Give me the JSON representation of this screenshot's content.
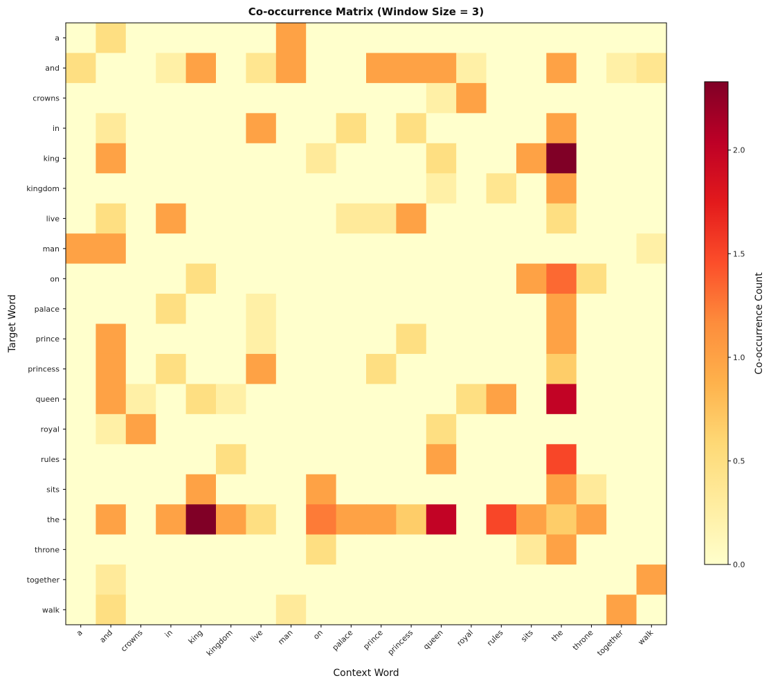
{
  "chart_data": {
    "type": "heatmap",
    "title": "Co-occurrence Matrix (Window Size = 3)",
    "xlabel": "Context Word",
    "ylabel": "Target Word",
    "colorbar_label": "Co-occurrence Count",
    "colormap": "YlOrRd",
    "vmin": 0,
    "vmax": 2.33,
    "colorbar_ticks": [
      "0.0",
      "0.5",
      "1.0",
      "1.5",
      "2.0"
    ],
    "x_labels": [
      "a",
      "and",
      "crowns",
      "in",
      "king",
      "kingdom",
      "live",
      "man",
      "on",
      "palace",
      "prince",
      "princess",
      "queen",
      "royal",
      "rules",
      "sits",
      "the",
      "throne",
      "together",
      "walk"
    ],
    "y_labels": [
      "a",
      "and",
      "crowns",
      "in",
      "king",
      "kingdom",
      "live",
      "man",
      "on",
      "palace",
      "prince",
      "princess",
      "queen",
      "royal",
      "rules",
      "sits",
      "the",
      "throne",
      "together",
      "walk"
    ],
    "values": [
      [
        0,
        0.5,
        0,
        0,
        0,
        0,
        0,
        1,
        0,
        0,
        0,
        0,
        0,
        0,
        0,
        0,
        0,
        0,
        0,
        0
      ],
      [
        0.5,
        0,
        0,
        0.25,
        1,
        0,
        0.4,
        1,
        0,
        0,
        1,
        1,
        1,
        0.25,
        0,
        0,
        1,
        0,
        0.25,
        0.4
      ],
      [
        0,
        0,
        0,
        0,
        0,
        0,
        0,
        0,
        0,
        0,
        0,
        0,
        0.25,
        1,
        0,
        0,
        0,
        0,
        0,
        0
      ],
      [
        0,
        0.33,
        0,
        0,
        0,
        0,
        1,
        0,
        0,
        0.5,
        0,
        0.5,
        0,
        0,
        0,
        0,
        1,
        0,
        0,
        0
      ],
      [
        0,
        1,
        0,
        0,
        0,
        0,
        0,
        0,
        0.33,
        0,
        0,
        0,
        0.5,
        0,
        0,
        1,
        2.33,
        0,
        0,
        0
      ],
      [
        0,
        0,
        0,
        0,
        0,
        0,
        0,
        0,
        0,
        0,
        0,
        0,
        0.25,
        0,
        0.4,
        0,
        1,
        0,
        0,
        0
      ],
      [
        0,
        0.5,
        0,
        1,
        0,
        0,
        0,
        0,
        0,
        0.33,
        0.33,
        1,
        0,
        0,
        0,
        0,
        0.5,
        0,
        0,
        0
      ],
      [
        1,
        1,
        0,
        0,
        0,
        0,
        0,
        0,
        0,
        0,
        0,
        0,
        0,
        0,
        0,
        0,
        0,
        0,
        0,
        0.25
      ],
      [
        0,
        0,
        0,
        0,
        0.5,
        0,
        0,
        0,
        0,
        0,
        0,
        0,
        0,
        0,
        0,
        1,
        1.33,
        0.5,
        0,
        0
      ],
      [
        0,
        0,
        0,
        0.5,
        0,
        0,
        0.25,
        0,
        0,
        0,
        0,
        0,
        0,
        0,
        0,
        0,
        1,
        0,
        0,
        0
      ],
      [
        0,
        1,
        0,
        0,
        0,
        0,
        0.25,
        0,
        0,
        0,
        0,
        0.5,
        0,
        0,
        0,
        0,
        1,
        0,
        0,
        0
      ],
      [
        0,
        1,
        0,
        0.5,
        0,
        0,
        1,
        0,
        0,
        0,
        0.5,
        0,
        0,
        0,
        0,
        0,
        0.67,
        0,
        0,
        0
      ],
      [
        0,
        1,
        0.25,
        0,
        0.5,
        0.25,
        0,
        0,
        0,
        0,
        0,
        0,
        0,
        0.5,
        1,
        0,
        2,
        0,
        0,
        0
      ],
      [
        0,
        0.25,
        1,
        0,
        0,
        0,
        0,
        0,
        0,
        0,
        0,
        0,
        0.5,
        0,
        0,
        0,
        0,
        0,
        0,
        0
      ],
      [
        0,
        0,
        0,
        0,
        0,
        0.5,
        0,
        0,
        0,
        0,
        0,
        0,
        1,
        0,
        0,
        0,
        1.5,
        0,
        0,
        0
      ],
      [
        0,
        0,
        0,
        0,
        1,
        0,
        0,
        0,
        1,
        0,
        0,
        0,
        0,
        0,
        0,
        0,
        1,
        0.33,
        0,
        0
      ],
      [
        0,
        1,
        0,
        1,
        2.33,
        1,
        0.5,
        0,
        1.25,
        1,
        1,
        0.67,
        2,
        0,
        1.5,
        1,
        0.67,
        1,
        0,
        0
      ],
      [
        0,
        0,
        0,
        0,
        0,
        0,
        0,
        0,
        0.5,
        0,
        0,
        0,
        0,
        0,
        0,
        0.33,
        1,
        0,
        0,
        0
      ],
      [
        0,
        0.33,
        0,
        0,
        0,
        0,
        0,
        0,
        0,
        0,
        0,
        0,
        0,
        0,
        0,
        0,
        0,
        0,
        0,
        1
      ],
      [
        0,
        0.5,
        0,
        0,
        0,
        0,
        0,
        0.33,
        0,
        0,
        0,
        0,
        0,
        0,
        0,
        0,
        0,
        0,
        1,
        0
      ]
    ]
  }
}
